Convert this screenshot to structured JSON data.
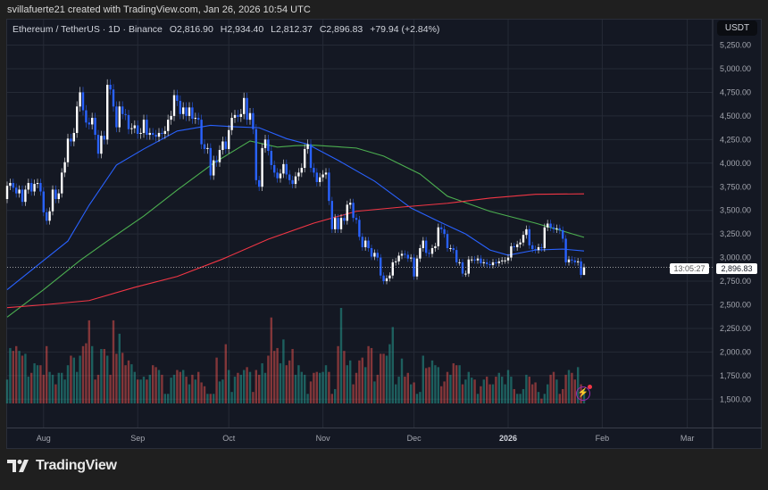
{
  "credit": "svillafuerte21 created with TradingView.com, Jan 26, 2026 10:54 UTC",
  "legend": {
    "symbol": "Ethereum / TetherUS · 1D · Binance",
    "open": "O2,816.90",
    "high": "H2,934.40",
    "low": "L2,812.37",
    "close": "C2,896.83",
    "change": "+79.94 (+2.84%)"
  },
  "currency": "USDT",
  "current_price": {
    "value": "2,896.83",
    "countdown": "13:05:27"
  },
  "branding": "TradingView",
  "colors": {
    "up": "#ffffff",
    "down": "#2962ff",
    "vol_up": "#26a69a",
    "vol_down": "#ef5350",
    "ma_blue": "#2962ff",
    "ma_green": "#4caf50",
    "ma_red": "#f23645",
    "background": "#141823"
  },
  "chart_data": {
    "type": "candlestick",
    "interval": "1D",
    "start": "2025-07-20",
    "ylim": [
      1400,
      5300
    ],
    "grid": true,
    "y_ticks": [
      "5,250.00",
      "5,000.00",
      "4,750.00",
      "4,500.00",
      "4,250.00",
      "4,000.00",
      "3,750.00",
      "3,500.00",
      "3,250.00",
      "3,000.00",
      "2,750.00",
      "2,500.00",
      "2,250.00",
      "2,000.00",
      "1,750.00",
      "1,500.00"
    ],
    "x_ticks": [
      {
        "label": "Aug",
        "date": "2025-08-01"
      },
      {
        "label": "Sep",
        "date": "2025-09-01"
      },
      {
        "label": "Oct",
        "date": "2025-10-01"
      },
      {
        "label": "Nov",
        "date": "2025-11-01"
      },
      {
        "label": "Dec",
        "date": "2025-12-01"
      },
      {
        "label": "2026",
        "date": "2026-01-01",
        "bold": true
      },
      {
        "label": "Feb",
        "date": "2026-02-01"
      },
      {
        "label": "Mar",
        "date": "2026-03-01"
      }
    ],
    "first_open": 3620,
    "last_high": 2934.4,
    "last_low": 2812.37,
    "close": [
      3760,
      3790,
      3740,
      3680,
      3720,
      3590,
      3720,
      3790,
      3700,
      3780,
      3790,
      3700,
      3480,
      3390,
      3490,
      3720,
      3620,
      3680,
      3900,
      4010,
      4260,
      4230,
      4320,
      4600,
      4750,
      4560,
      4430,
      4410,
      4480,
      4300,
      4100,
      4290,
      4250,
      4830,
      4780,
      4600,
      4380,
      4600,
      4520,
      4510,
      4360,
      4370,
      4400,
      4310,
      4320,
      4460,
      4300,
      4320,
      4300,
      4280,
      4320,
      4310,
      4340,
      4460,
      4500,
      4720,
      4660,
      4520,
      4590,
      4500,
      4590,
      4470,
      4480,
      4460,
      4200,
      4150,
      4160,
      3870,
      4030,
      4010,
      4140,
      4230,
      4150,
      4350,
      4480,
      4510,
      4490,
      4520,
      4690,
      4460,
      4530,
      4360,
      3820,
      3750,
      4160,
      4250,
      4130,
      3980,
      3900,
      3840,
      3890,
      3990,
      3880,
      3820,
      3780,
      3860,
      3900,
      3950,
      4150,
      4200,
      3950,
      3900,
      3800,
      3850,
      3880,
      3900,
      3600,
      3300,
      3420,
      3300,
      3420,
      3390,
      3560,
      3580,
      3420,
      3400,
      3220,
      3110,
      3180,
      3100,
      3010,
      3050,
      3000,
      2810,
      2750,
      2780,
      2810,
      2950,
      2960,
      3020,
      3040,
      3030,
      2990,
      3000,
      2800,
      2990,
      3100,
      3180,
      3050,
      3040,
      3100,
      3120,
      3320,
      3300,
      3250,
      3100,
      3100,
      3080,
      2950,
      2950,
      2830,
      2830,
      2980,
      2980,
      2970,
      2990,
      2940,
      2950,
      2930,
      2920,
      2950,
      2940,
      2960,
      2970,
      2970,
      3000,
      3120,
      3110,
      3140,
      3160,
      3240,
      3300,
      3130,
      3090,
      3080,
      3110,
      3100,
      3320,
      3360,
      3320,
      3300,
      3310,
      3290,
      3200,
      2950,
      2980,
      2970,
      2950,
      2960,
      2816.9,
      2896.83
    ],
    "volume_relative": [
      25,
      58,
      55,
      60,
      55,
      50,
      52,
      28,
      32,
      42,
      40,
      40,
      30,
      60,
      33,
      30,
      20,
      32,
      32,
      25,
      40,
      50,
      48,
      33,
      50,
      60,
      63,
      87,
      60,
      25,
      30,
      57,
      57,
      50,
      30,
      87,
      52,
      73,
      53,
      40,
      45,
      41,
      33,
      25,
      25,
      28,
      25,
      30,
      40,
      38,
      35,
      30,
      10,
      10,
      27,
      30,
      35,
      33,
      35,
      28,
      20,
      30,
      25,
      33,
      22,
      18,
      10,
      10,
      10,
      48,
      23,
      25,
      62,
      35,
      12,
      28,
      32,
      30,
      35,
      38,
      33,
      12,
      35,
      30,
      42,
      32,
      50,
      90,
      55,
      58,
      42,
      67,
      40,
      45,
      57,
      30,
      40,
      33,
      30,
      10,
      23,
      32,
      33,
      32,
      33,
      40,
      33,
      10,
      15,
      60,
      100,
      55,
      40,
      45,
      20,
      32,
      45,
      48,
      38,
      60,
      58,
      23,
      30,
      52,
      52,
      50,
      62,
      80,
      20,
      28,
      47,
      28,
      32,
      20,
      22,
      10,
      12,
      50,
      37,
      38,
      45,
      40,
      38,
      18,
      23,
      33,
      30,
      42,
      40,
      40,
      20,
      25,
      33,
      27,
      25,
      10,
      18,
      25,
      28,
      20,
      20,
      28,
      32,
      28,
      20,
      35,
      28,
      15,
      10,
      10,
      15,
      30,
      28,
      20,
      22,
      12,
      5,
      10,
      20,
      30,
      33,
      25,
      10,
      15,
      30,
      35,
      32,
      25,
      38,
      20,
      15,
      10,
      12,
      30,
      32,
      40,
      35,
      22,
      20,
      25
    ],
    "moving_averages": [
      {
        "color": "#2962ff",
        "points": [
          [
            "2025-07-20",
            2660
          ],
          [
            "2025-08-01",
            2970
          ],
          [
            "2025-08-09",
            3175
          ],
          [
            "2025-08-16",
            3555
          ],
          [
            "2025-08-25",
            3980
          ],
          [
            "2025-09-03",
            4150
          ],
          [
            "2025-09-14",
            4340
          ],
          [
            "2025-09-25",
            4400
          ],
          [
            "2025-10-03",
            4385
          ],
          [
            "2025-10-11",
            4375
          ],
          [
            "2025-10-20",
            4260
          ],
          [
            "2025-10-27",
            4200
          ],
          [
            "2025-11-06",
            4030
          ],
          [
            "2025-11-18",
            3810
          ],
          [
            "2025-11-30",
            3525
          ],
          [
            "2025-12-09",
            3385
          ],
          [
            "2025-12-18",
            3250
          ],
          [
            "2025-12-26",
            3080
          ],
          [
            "2026-01-01",
            3025
          ],
          [
            "2026-01-10",
            3080
          ],
          [
            "2026-01-19",
            3090
          ],
          [
            "2026-01-26",
            3070
          ]
        ]
      },
      {
        "color": "#4caf50",
        "points": [
          [
            "2025-07-20",
            2370
          ],
          [
            "2025-08-01",
            2660
          ],
          [
            "2025-08-13",
            2970
          ],
          [
            "2025-08-22",
            3175
          ],
          [
            "2025-09-03",
            3440
          ],
          [
            "2025-09-14",
            3715
          ],
          [
            "2025-09-26",
            4000
          ],
          [
            "2025-10-08",
            4235
          ],
          [
            "2025-10-17",
            4170
          ],
          [
            "2025-10-23",
            4185
          ],
          [
            "2025-10-29",
            4190
          ],
          [
            "2025-11-12",
            4160
          ],
          [
            "2025-11-21",
            4075
          ],
          [
            "2025-12-03",
            3885
          ],
          [
            "2025-12-12",
            3650
          ],
          [
            "2025-12-26",
            3490
          ],
          [
            "2026-01-10",
            3365
          ],
          [
            "2026-01-26",
            3215
          ]
        ]
      },
      {
        "color": "#f23645",
        "points": [
          [
            "2025-07-20",
            2470
          ],
          [
            "2025-08-01",
            2500
          ],
          [
            "2025-08-16",
            2545
          ],
          [
            "2025-08-31",
            2685
          ],
          [
            "2025-09-14",
            2800
          ],
          [
            "2025-09-29",
            2985
          ],
          [
            "2025-10-14",
            3195
          ],
          [
            "2025-10-29",
            3365
          ],
          [
            "2025-11-12",
            3490
          ],
          [
            "2025-11-27",
            3535
          ],
          [
            "2025-12-12",
            3575
          ],
          [
            "2025-12-26",
            3630
          ],
          [
            "2026-01-10",
            3670
          ],
          [
            "2026-01-26",
            3675
          ]
        ]
      }
    ]
  }
}
